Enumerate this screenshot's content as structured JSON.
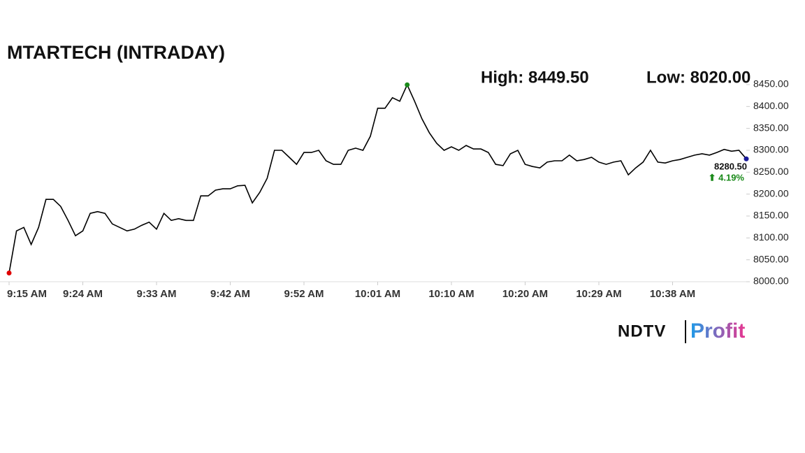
{
  "chart_data": {
    "type": "line",
    "title": "MTARTECH (INTRADAY)",
    "high_label": "High: 8449.50",
    "low_label": "Low: 8020.00",
    "last_label": "8280.50",
    "change_label": "⬆ 4.19%",
    "logo": {
      "left": "NDTV",
      "right": "Profit"
    },
    "color": "#000000",
    "low_color": "#e00000",
    "high_color": "#1a8a1a",
    "last_color": "#1a1a9a",
    "change_color": "#1a8a1a",
    "categories": [
      "9:15 AM",
      null,
      null,
      null,
      null,
      null,
      null,
      null,
      null,
      null,
      "9:24 AM",
      null,
      null,
      null,
      null,
      null,
      null,
      null,
      null,
      null,
      "9:33 AM",
      null,
      null,
      null,
      null,
      null,
      null,
      null,
      null,
      null,
      "9:42 AM",
      null,
      null,
      null,
      null,
      null,
      null,
      null,
      null,
      null,
      "9:52 AM",
      null,
      null,
      null,
      null,
      null,
      null,
      null,
      null,
      null,
      "10:01 AM",
      null,
      null,
      null,
      null,
      null,
      null,
      null,
      null,
      null,
      "10:10 AM",
      null,
      null,
      null,
      null,
      null,
      null,
      null,
      null,
      null,
      "10:20 AM",
      null,
      null,
      null,
      null,
      null,
      null,
      null,
      null,
      null,
      "10:29 AM",
      null,
      null,
      null,
      null,
      null,
      null,
      null,
      null,
      null,
      "10:38 AM",
      null,
      null,
      null,
      null,
      null,
      null,
      null,
      null,
      null,
      null
    ],
    "values": [
      8020,
      8116,
      8124,
      8085,
      8124,
      8188,
      8188,
      8172,
      8140,
      8105,
      8116,
      8156,
      8160,
      8156,
      8132,
      8124,
      8116,
      8120,
      8129,
      8136,
      8120,
      8156,
      8140,
      8144,
      8140,
      8140,
      8196,
      8196,
      8209,
      8212,
      8212,
      8219,
      8220,
      8180,
      8204,
      8236,
      8300,
      8300,
      8284,
      8268,
      8295,
      8295,
      8300,
      8276,
      8268,
      8268,
      8300,
      8305,
      8300,
      8332,
      8396,
      8396,
      8420,
      8412,
      8449.5,
      8412,
      8372,
      8340,
      8316,
      8300,
      8308,
      8300,
      8311,
      8303,
      8303,
      8295,
      8268,
      8265,
      8292,
      8300,
      8268,
      8263,
      8260,
      8273,
      8276,
      8276,
      8289,
      8276,
      8279,
      8284,
      8273,
      8268,
      8273,
      8276,
      8244,
      8260,
      8273,
      8300,
      8273,
      8271,
      8276,
      8279,
      8284,
      8289,
      8292,
      8289,
      8295,
      8302,
      8298,
      8300,
      8280.5
    ],
    "ylim": [
      8000,
      8450
    ],
    "yticks": [
      {
        "value": 8000,
        "label": "8000.00"
      },
      {
        "value": 8050,
        "label": "8050.00"
      },
      {
        "value": 8100,
        "label": "8100.00"
      },
      {
        "value": 8150,
        "label": "8150.00"
      },
      {
        "value": 8200,
        "label": "8200.00"
      },
      {
        "value": 8250,
        "label": "8250.00"
      },
      {
        "value": 8300,
        "label": "8300.00"
      },
      {
        "value": 8350,
        "label": "8350.00"
      },
      {
        "value": 8400,
        "label": "8400.00"
      },
      {
        "value": 8450,
        "label": "8450.00"
      }
    ]
  }
}
